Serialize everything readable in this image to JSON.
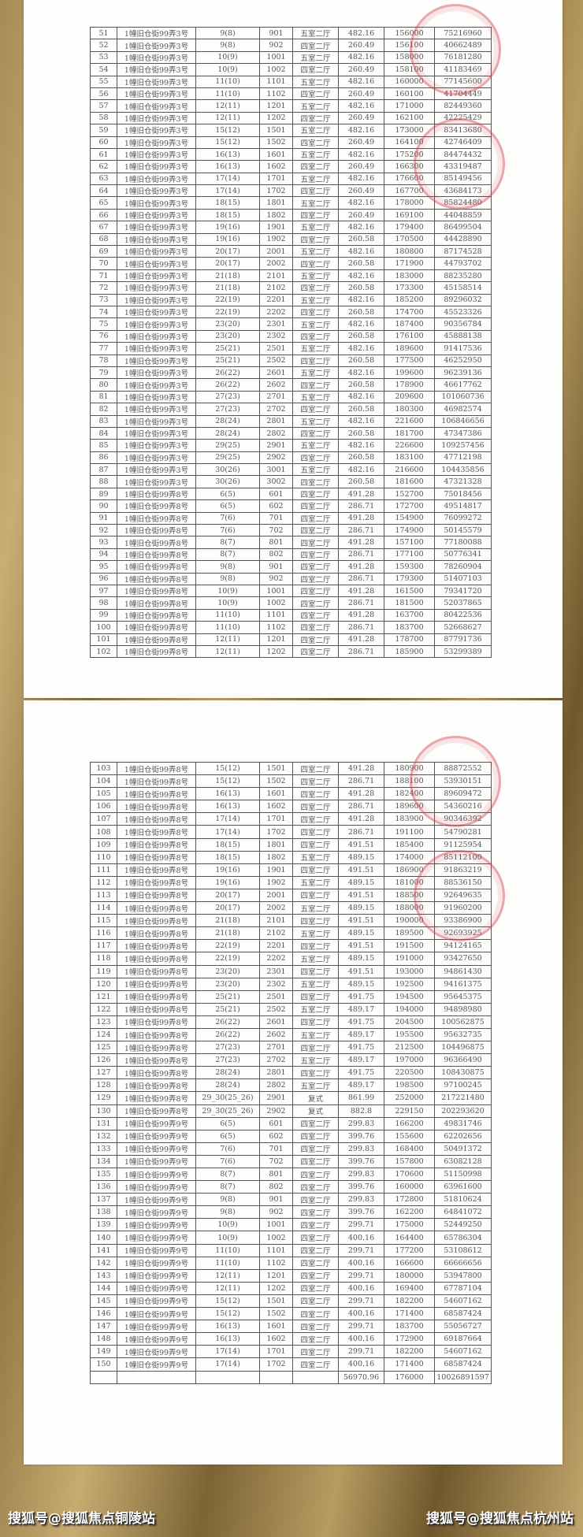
{
  "page1_rows": [
    [
      "51",
      "1幢旧仓街99弄3号",
      "9(8)",
      "901",
      "五室二厅",
      "482.16",
      "156000",
      "75216960"
    ],
    [
      "52",
      "1幢旧仓街99弄3号",
      "9(8)",
      "902",
      "四室二厅",
      "260.49",
      "156100",
      "40662489"
    ],
    [
      "53",
      "1幢旧仓街99弄3号",
      "10(9)",
      "1001",
      "五室二厅",
      "482.16",
      "158000",
      "76181280"
    ],
    [
      "54",
      "1幢旧仓街99弄3号",
      "10(9)",
      "1002",
      "四室二厅",
      "260.49",
      "158100",
      "41183469"
    ],
    [
      "55",
      "1幢旧仓街99弄3号",
      "11(10)",
      "1101",
      "五室二厅",
      "482.16",
      "160000",
      "77145600"
    ],
    [
      "56",
      "1幢旧仓街99弄3号",
      "11(10)",
      "1102",
      "四室二厅",
      "260.49",
      "160100",
      "41704449"
    ],
    [
      "57",
      "1幢旧仓街99弄3号",
      "12(11)",
      "1201",
      "五室二厅",
      "482.16",
      "171000",
      "82449360"
    ],
    [
      "58",
      "1幢旧仓街99弄3号",
      "12(11)",
      "1202",
      "四室二厅",
      "260.49",
      "162100",
      "42225429"
    ],
    [
      "59",
      "1幢旧仓街99弄3号",
      "15(12)",
      "1501",
      "五室二厅",
      "482.16",
      "173000",
      "83413680"
    ],
    [
      "60",
      "1幢旧仓街99弄3号",
      "15(12)",
      "1502",
      "四室二厅",
      "260.49",
      "164100",
      "42746409"
    ],
    [
      "61",
      "1幢旧仓街99弄3号",
      "16(13)",
      "1601",
      "五室二厅",
      "482.16",
      "175200",
      "84474432"
    ],
    [
      "62",
      "1幢旧仓街99弄3号",
      "16(13)",
      "1602",
      "四室二厅",
      "260.49",
      "166300",
      "43319487"
    ],
    [
      "63",
      "1幢旧仓街99弄3号",
      "17(14)",
      "1701",
      "五室二厅",
      "482.16",
      "176600",
      "85149456"
    ],
    [
      "64",
      "1幢旧仓街99弄3号",
      "17(14)",
      "1702",
      "四室二厅",
      "260.49",
      "167700",
      "43684173"
    ],
    [
      "65",
      "1幢旧仓街99弄3号",
      "18(15)",
      "1801",
      "五室二厅",
      "482.16",
      "178000",
      "85824480"
    ],
    [
      "66",
      "1幢旧仓街99弄3号",
      "18(15)",
      "1802",
      "四室二厅",
      "260.49",
      "169100",
      "44048859"
    ],
    [
      "67",
      "1幢旧仓街99弄3号",
      "19(16)",
      "1901",
      "五室二厅",
      "482.16",
      "179400",
      "86499504"
    ],
    [
      "68",
      "1幢旧仓街99弄3号",
      "19(16)",
      "1902",
      "四室二厅",
      "260.58",
      "170500",
      "44428890"
    ],
    [
      "69",
      "1幢旧仓街99弄3号",
      "20(17)",
      "2001",
      "五室二厅",
      "482.16",
      "180800",
      "87174528"
    ],
    [
      "70",
      "1幢旧仓街99弄3号",
      "20(17)",
      "2002",
      "四室二厅",
      "260.58",
      "171900",
      "44793702"
    ],
    [
      "71",
      "1幢旧仓街99弄3号",
      "21(18)",
      "2101",
      "五室二厅",
      "482.16",
      "183000",
      "88235280"
    ],
    [
      "72",
      "1幢旧仓街99弄3号",
      "21(18)",
      "2102",
      "四室二厅",
      "260.58",
      "173300",
      "45158514"
    ],
    [
      "73",
      "1幢旧仓街99弄3号",
      "22(19)",
      "2201",
      "五室二厅",
      "482.16",
      "185200",
      "89296032"
    ],
    [
      "74",
      "1幢旧仓街99弄3号",
      "22(19)",
      "2202",
      "四室二厅",
      "260.58",
      "174700",
      "45523326"
    ],
    [
      "75",
      "1幢旧仓街99弄3号",
      "23(20)",
      "2301",
      "五室二厅",
      "482.16",
      "187400",
      "90356784"
    ],
    [
      "76",
      "1幢旧仓街99弄3号",
      "23(20)",
      "2302",
      "四室二厅",
      "260.58",
      "176100",
      "45888138"
    ],
    [
      "77",
      "1幢旧仓街99弄3号",
      "25(21)",
      "2501",
      "五室二厅",
      "482.16",
      "189600",
      "91417536"
    ],
    [
      "78",
      "1幢旧仓街99弄3号",
      "25(21)",
      "2502",
      "四室二厅",
      "260.58",
      "177500",
      "46252950"
    ],
    [
      "79",
      "1幢旧仓街99弄3号",
      "26(22)",
      "2601",
      "五室二厅",
      "482.16",
      "199600",
      "96239136"
    ],
    [
      "80",
      "1幢旧仓街99弄3号",
      "26(22)",
      "2602",
      "四室二厅",
      "260.58",
      "178900",
      "46617762"
    ],
    [
      "81",
      "1幢旧仓街99弄3号",
      "27(23)",
      "2701",
      "五室二厅",
      "482.16",
      "209600",
      "101060736"
    ],
    [
      "82",
      "1幢旧仓街99弄3号",
      "27(23)",
      "2702",
      "四室二厅",
      "260.58",
      "180300",
      "46982574"
    ],
    [
      "83",
      "1幢旧仓街99弄3号",
      "28(24)",
      "2801",
      "五室二厅",
      "482.16",
      "221600",
      "106846656"
    ],
    [
      "84",
      "1幢旧仓街99弄3号",
      "28(24)",
      "2802",
      "四室二厅",
      "260.58",
      "181700",
      "47347386"
    ],
    [
      "85",
      "1幢旧仓街99弄3号",
      "29(25)",
      "2901",
      "五室二厅",
      "482.16",
      "226600",
      "109257456"
    ],
    [
      "86",
      "1幢旧仓街99弄3号",
      "29(25)",
      "2902",
      "四室二厅",
      "260.58",
      "183100",
      "47712198"
    ],
    [
      "87",
      "1幢旧仓街99弄3号",
      "30(26)",
      "3001",
      "五室二厅",
      "482.16",
      "216600",
      "104435856"
    ],
    [
      "88",
      "1幢旧仓街99弄3号",
      "30(26)",
      "3002",
      "四室二厅",
      "260.58",
      "181600",
      "47321328"
    ],
    [
      "89",
      "1幢旧仓街99弄8号",
      "6(5)",
      "601",
      "四室二厅",
      "491.28",
      "152700",
      "75018456"
    ],
    [
      "90",
      "1幢旧仓街99弄8号",
      "6(5)",
      "602",
      "四室二厅",
      "286.71",
      "172700",
      "49514817"
    ],
    [
      "91",
      "1幢旧仓街99弄8号",
      "7(6)",
      "701",
      "四室二厅",
      "491.28",
      "154900",
      "76099272"
    ],
    [
      "92",
      "1幢旧仓街99弄8号",
      "7(6)",
      "702",
      "四室二厅",
      "286.71",
      "174900",
      "50145579"
    ],
    [
      "93",
      "1幢旧仓街99弄8号",
      "8(7)",
      "801",
      "四室二厅",
      "491.28",
      "157100",
      "77180088"
    ],
    [
      "94",
      "1幢旧仓街99弄8号",
      "8(7)",
      "802",
      "四室二厅",
      "286.71",
      "177100",
      "50776341"
    ],
    [
      "95",
      "1幢旧仓街99弄8号",
      "9(8)",
      "901",
      "四室二厅",
      "491.28",
      "159300",
      "78260904"
    ],
    [
      "96",
      "1幢旧仓街99弄8号",
      "9(8)",
      "902",
      "四室二厅",
      "286.71",
      "179300",
      "51407103"
    ],
    [
      "97",
      "1幢旧仓街99弄8号",
      "10(9)",
      "1001",
      "四室二厅",
      "491.28",
      "161500",
      "79341720"
    ],
    [
      "98",
      "1幢旧仓街99弄8号",
      "10(9)",
      "1002",
      "四室二厅",
      "286.71",
      "181500",
      "52037865"
    ],
    [
      "99",
      "1幢旧仓街99弄8号",
      "11(10)",
      "1101",
      "四室二厅",
      "491.28",
      "163700",
      "80422536"
    ],
    [
      "100",
      "1幢旧仓街99弄8号",
      "11(10)",
      "1102",
      "四室二厅",
      "286.71",
      "183700",
      "52668627"
    ],
    [
      "101",
      "1幢旧仓街99弄8号",
      "12(11)",
      "1201",
      "四室二厅",
      "491.28",
      "178700",
      "87791736"
    ],
    [
      "102",
      "1幢旧仓街99弄8号",
      "12(11)",
      "1202",
      "四室二厅",
      "286.71",
      "185900",
      "53299389"
    ]
  ],
  "page2_rows": [
    [
      "103",
      "1幢旧仓街99弄8号",
      "15(12)",
      "1501",
      "四室二厅",
      "491.28",
      "180900",
      "88872552"
    ],
    [
      "104",
      "1幢旧仓街99弄8号",
      "15(12)",
      "1502",
      "四室二厅",
      "286.71",
      "188100",
      "53930151"
    ],
    [
      "105",
      "1幢旧仓街99弄8号",
      "16(13)",
      "1601",
      "四室二厅",
      "491.28",
      "182400",
      "89609472"
    ],
    [
      "106",
      "1幢旧仓街99弄8号",
      "16(13)",
      "1602",
      "四室二厅",
      "286.71",
      "189600",
      "54360216"
    ],
    [
      "107",
      "1幢旧仓街99弄8号",
      "17(14)",
      "1701",
      "四室二厅",
      "491.28",
      "183900",
      "90346392"
    ],
    [
      "108",
      "1幢旧仓街99弄8号",
      "17(14)",
      "1702",
      "四室二厅",
      "286.71",
      "191100",
      "54790281"
    ],
    [
      "109",
      "1幢旧仓街99弄8号",
      "18(15)",
      "1801",
      "四室二厅",
      "491.51",
      "185400",
      "91125954"
    ],
    [
      "110",
      "1幢旧仓街99弄8号",
      "18(15)",
      "1802",
      "五室二厅",
      "489.15",
      "174000",
      "85112100"
    ],
    [
      "111",
      "1幢旧仓街99弄8号",
      "19(16)",
      "1901",
      "四室二厅",
      "491.51",
      "186900",
      "91863219"
    ],
    [
      "112",
      "1幢旧仓街99弄8号",
      "19(16)",
      "1902",
      "五室二厅",
      "489.15",
      "181000",
      "88536150"
    ],
    [
      "113",
      "1幢旧仓街99弄8号",
      "20(17)",
      "2001",
      "四室二厅",
      "491.51",
      "188500",
      "92649635"
    ],
    [
      "114",
      "1幢旧仓街99弄8号",
      "20(17)",
      "2002",
      "五室二厅",
      "489.15",
      "188000",
      "91960200"
    ],
    [
      "115",
      "1幢旧仓街99弄8号",
      "21(18)",
      "2101",
      "四室二厅",
      "491.51",
      "190000",
      "93386900"
    ],
    [
      "116",
      "1幢旧仓街99弄8号",
      "21(18)",
      "2102",
      "五室二厅",
      "489.15",
      "189500",
      "92693925"
    ],
    [
      "117",
      "1幢旧仓街99弄8号",
      "22(19)",
      "2201",
      "四室二厅",
      "491.51",
      "191500",
      "94124165"
    ],
    [
      "118",
      "1幢旧仓街99弄8号",
      "22(19)",
      "2202",
      "五室二厅",
      "489.15",
      "191000",
      "93427650"
    ],
    [
      "119",
      "1幢旧仓街99弄8号",
      "23(20)",
      "2301",
      "四室二厅",
      "491.51",
      "193000",
      "94861430"
    ],
    [
      "120",
      "1幢旧仓街99弄8号",
      "23(20)",
      "2302",
      "五室二厅",
      "489.15",
      "192500",
      "94161375"
    ],
    [
      "121",
      "1幢旧仓街99弄8号",
      "25(21)",
      "2501",
      "四室二厅",
      "491.75",
      "194500",
      "95645375"
    ],
    [
      "122",
      "1幢旧仓街99弄8号",
      "25(21)",
      "2502",
      "五室二厅",
      "489.17",
      "194000",
      "94898980"
    ],
    [
      "123",
      "1幢旧仓街99弄8号",
      "26(22)",
      "2601",
      "四室二厅",
      "491.75",
      "204500",
      "100562875"
    ],
    [
      "124",
      "1幢旧仓街99弄8号",
      "26(22)",
      "2602",
      "五室二厅",
      "489.17",
      "195500",
      "95632735"
    ],
    [
      "125",
      "1幢旧仓街99弄8号",
      "27(23)",
      "2701",
      "四室二厅",
      "491.75",
      "212500",
      "104496875"
    ],
    [
      "126",
      "1幢旧仓街99弄8号",
      "27(23)",
      "2702",
      "五室二厅",
      "489.17",
      "197000",
      "96366490"
    ],
    [
      "127",
      "1幢旧仓街99弄8号",
      "28(24)",
      "2801",
      "四室二厅",
      "491.75",
      "220500",
      "108430875"
    ],
    [
      "128",
      "1幢旧仓街99弄8号",
      "28(24)",
      "2802",
      "五室二厅",
      "489.17",
      "198500",
      "97100245"
    ],
    [
      "129",
      "1幢旧仓街99弄8号",
      "29_30(25_26)",
      "2901",
      "复式",
      "861.99",
      "252000",
      "217221480"
    ],
    [
      "130",
      "1幢旧仓街99弄8号",
      "29_30(25_26)",
      "2902",
      "复式",
      "882.8",
      "229150",
      "202293620"
    ],
    [
      "131",
      "1幢旧仓街99弄9号",
      "6(5)",
      "601",
      "四室二厅",
      "299.83",
      "166200",
      "49831746"
    ],
    [
      "132",
      "1幢旧仓街99弄9号",
      "6(5)",
      "602",
      "四室二厅",
      "399.76",
      "155600",
      "62202656"
    ],
    [
      "133",
      "1幢旧仓街99弄9号",
      "7(6)",
      "701",
      "四室二厅",
      "299.83",
      "168400",
      "50491372"
    ],
    [
      "134",
      "1幢旧仓街99弄9号",
      "7(6)",
      "702",
      "四室二厅",
      "399.76",
      "157800",
      "63082128"
    ],
    [
      "135",
      "1幢旧仓街99弄9号",
      "8(7)",
      "801",
      "四室二厅",
      "299.83",
      "170600",
      "51150998"
    ],
    [
      "136",
      "1幢旧仓街99弄9号",
      "8(7)",
      "802",
      "四室二厅",
      "399.76",
      "160000",
      "63961600"
    ],
    [
      "137",
      "1幢旧仓街99弄9号",
      "9(8)",
      "901",
      "四室二厅",
      "299.83",
      "172800",
      "51810624"
    ],
    [
      "138",
      "1幢旧仓街99弄9号",
      "9(8)",
      "902",
      "四室二厅",
      "399.76",
      "162200",
      "64841072"
    ],
    [
      "139",
      "1幢旧仓街99弄9号",
      "10(9)",
      "1001",
      "四室二厅",
      "299.71",
      "175000",
      "52449250"
    ],
    [
      "140",
      "1幢旧仓街99弄9号",
      "10(9)",
      "1002",
      "四室二厅",
      "400.16",
      "164400",
      "65786304"
    ],
    [
      "141",
      "1幢旧仓街99弄9号",
      "11(10)",
      "1101",
      "四室二厅",
      "299.71",
      "177200",
      "53108612"
    ],
    [
      "142",
      "1幢旧仓街99弄9号",
      "11(10)",
      "1102",
      "四室二厅",
      "400.16",
      "166600",
      "66666656"
    ],
    [
      "143",
      "1幢旧仓街99弄9号",
      "12(11)",
      "1201",
      "四室二厅",
      "299.71",
      "180000",
      "53947800"
    ],
    [
      "144",
      "1幢旧仓街99弄9号",
      "12(11)",
      "1202",
      "四室二厅",
      "400.16",
      "169400",
      "67787104"
    ],
    [
      "145",
      "1幢旧仓街99弄9号",
      "15(12)",
      "1501",
      "四室二厅",
      "299.71",
      "182200",
      "54607162"
    ],
    [
      "146",
      "1幢旧仓街99弄9号",
      "15(12)",
      "1502",
      "四室二厅",
      "400.16",
      "171400",
      "68587424"
    ],
    [
      "147",
      "1幢旧仓街99弄9号",
      "16(13)",
      "1601",
      "四室二厅",
      "299.71",
      "183700",
      "55056727"
    ],
    [
      "148",
      "1幢旧仓街99弄9号",
      "16(13)",
      "1602",
      "四室二厅",
      "400.16",
      "172900",
      "69187664"
    ],
    [
      "149",
      "1幢旧仓街99弄9号",
      "17(14)",
      "1701",
      "四室二厅",
      "299.71",
      "182200",
      "54607162"
    ],
    [
      "150",
      "1幢旧仓街99弄9号",
      "17(14)",
      "1702",
      "四室二厅",
      "400.16",
      "171400",
      "68587424"
    ]
  ],
  "totals": {
    "area": "56970.96",
    "price": "176000",
    "total": "10026891597"
  },
  "stamp_color": "#d23c46",
  "watermarks": {
    "left": "搜狐号@搜狐焦点铜陵站",
    "right": "搜狐号@搜狐焦点杭州站"
  }
}
